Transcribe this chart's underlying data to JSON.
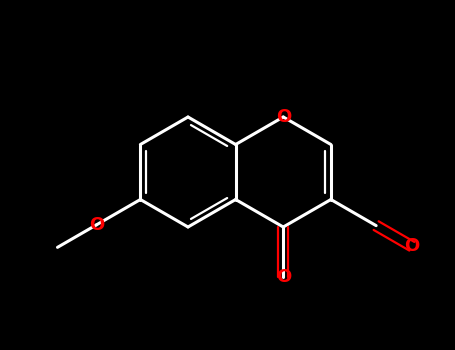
{
  "bg_color": "#000000",
  "bond_color": "#ffffff",
  "heteroatom_color": "#ff0000",
  "bond_lw": 2.2,
  "double_inner_lw": 1.6,
  "figsize": [
    4.55,
    3.5
  ],
  "dpi": 100,
  "xlim": [
    0,
    455
  ],
  "ylim": [
    0,
    350
  ]
}
